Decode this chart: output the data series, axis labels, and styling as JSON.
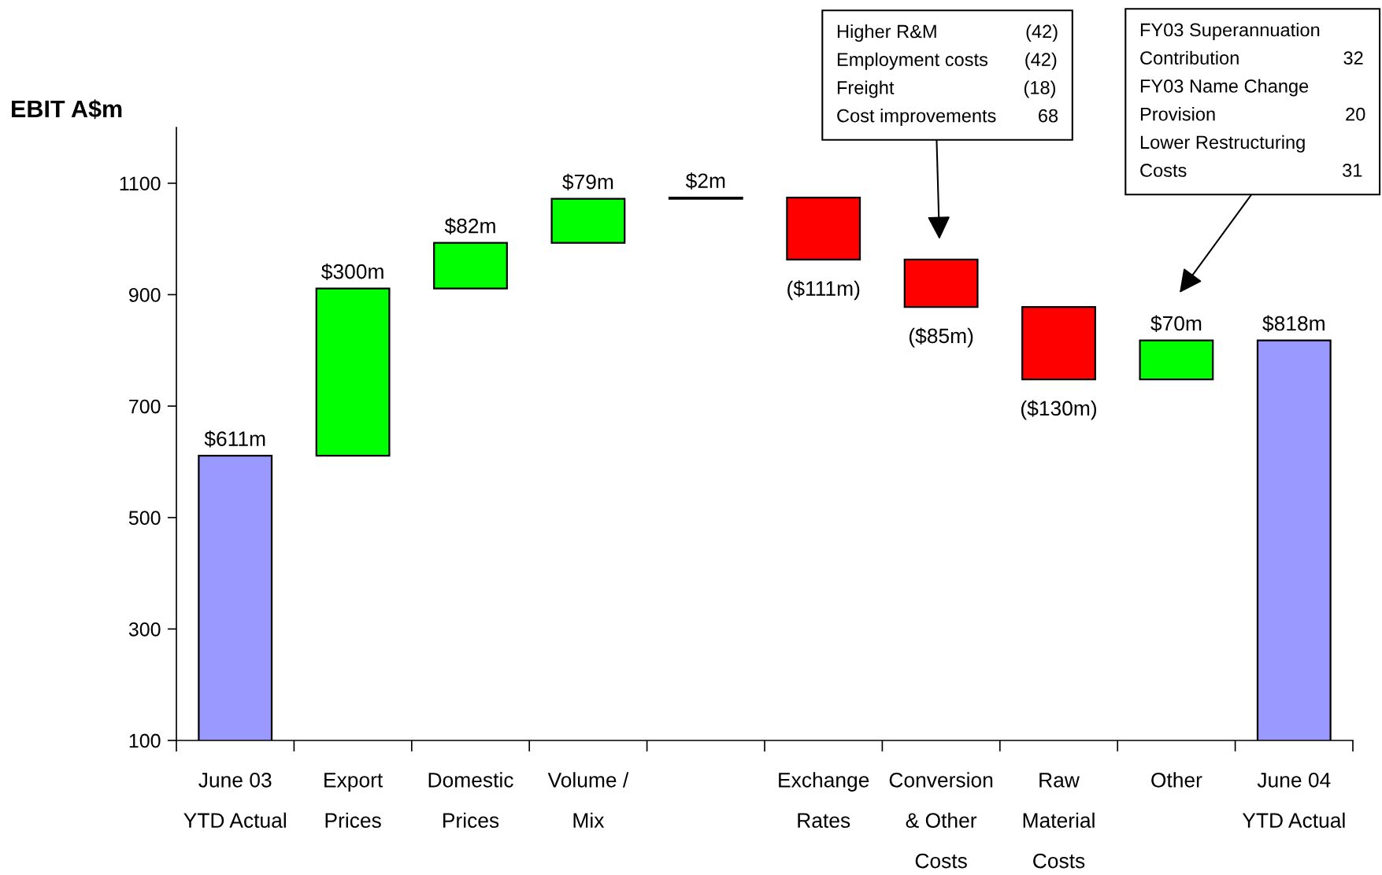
{
  "chart_data": {
    "type": "bar",
    "ylabel": "EBIT A$m",
    "categories": [
      "June 03\nYTD Actual",
      "Export\nPrices",
      "Domestic\nPrices",
      "Volume /\nMix",
      null,
      "Exchange\nRates",
      "Conversion\n& Other\nCosts",
      "Raw\nMaterial\nCosts",
      "Other",
      "June 04\nYTD Actual"
    ],
    "values": [
      611,
      300,
      82,
      79,
      2,
      -111,
      -85,
      -130,
      70,
      818
    ],
    "base": [
      null,
      611,
      911,
      993,
      1072,
      1074,
      963,
      878,
      748,
      null
    ],
    "colors": [
      "#9999ff",
      "#00ff00",
      "#00ff00",
      "#00ff00",
      "#000000",
      "#ff0000",
      "#ff0000",
      "#ff0000",
      "#00ff00",
      "#9999ff"
    ],
    "value_labels": [
      "$611m",
      "$300m",
      "$82m",
      "$79m",
      "$2m",
      "($111m)",
      "($85m)",
      "($130m)",
      "$70m",
      "$818m"
    ],
    "ylim": [
      100,
      1200
    ],
    "yticks": [
      100,
      300,
      500,
      700,
      900,
      1100
    ],
    "annotations": [
      "Higher R&M (42)\nEmployment costs (42)\nFreight (18)\nCost improvements 68",
      "FY03 Superannuation\nContribution 32\nFY03 Name Change\nProvision 20\nLower Restructuring\nCosts 31"
    ]
  }
}
